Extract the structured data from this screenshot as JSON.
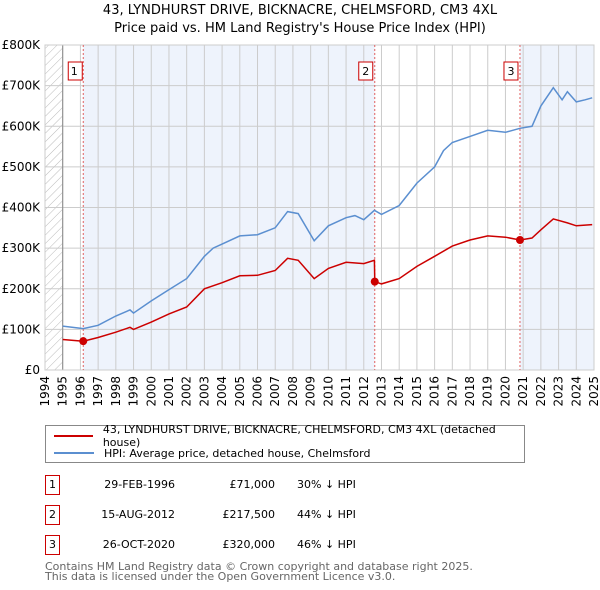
{
  "title_line1": "43, LYNDHURST DRIVE, BICKNACRE, CHELMSFORD, CM3 4XL",
  "title_line2": "Price paid vs. HM Land Registry's House Price Index (HPI)",
  "chart_data": {
    "type": "line",
    "title": "43, LYNDHURST DRIVE, BICKNACRE, CHELMSFORD, CM3 4XL — Price paid vs. HM Land Registry's House Price Index (HPI)",
    "xlim": [
      1994,
      2025
    ],
    "ylim": [
      0,
      800000
    ],
    "y_ticks": [
      0,
      100000,
      200000,
      300000,
      400000,
      500000,
      600000,
      700000,
      800000
    ],
    "y_tick_labels": [
      "£0",
      "£100K",
      "£200K",
      "£300K",
      "£400K",
      "£500K",
      "£600K",
      "£700K",
      "£800K"
    ],
    "x_ticks": [
      1994,
      1995,
      1996,
      1997,
      1998,
      1999,
      2000,
      2001,
      2002,
      2003,
      2004,
      2005,
      2006,
      2007,
      2008,
      2009,
      2010,
      2011,
      2012,
      2013,
      2014,
      2015,
      2016,
      2017,
      2018,
      2019,
      2020,
      2021,
      2022,
      2023,
      2024,
      2025
    ],
    "grid": true,
    "colors": {
      "property": "#cc0000",
      "hpi": "#5b8fd0",
      "shade": "#eef3fc",
      "marker_box": "#cc0000"
    },
    "series": [
      {
        "name": "43, LYNDHURST DRIVE, BICKNACRE, CHELMSFORD, CM3 4XL (detached house)",
        "color": "#cc0000",
        "x": [
          1995,
          1996.16,
          1997,
          1998,
          1998.8,
          1999,
          2000,
          2001,
          2002,
          2003,
          2004,
          2005,
          2006,
          2007,
          2007.7,
          2008.3,
          2009.2,
          2010,
          2011,
          2012,
          2012.6,
          2012.62,
          2013,
          2014,
          2015,
          2016,
          2017,
          2018,
          2019,
          2020,
          2020.82,
          2021.5,
          2022,
          2022.7,
          2023.5,
          2024,
          2024.9
        ],
        "y": [
          75000,
          71000,
          80000,
          93000,
          105000,
          100000,
          118000,
          138000,
          155000,
          200000,
          215000,
          232000,
          233000,
          245000,
          275000,
          270000,
          225000,
          250000,
          265000,
          262000,
          270000,
          217500,
          212000,
          225000,
          255000,
          280000,
          305000,
          320000,
          330000,
          327000,
          320000,
          325000,
          345000,
          372000,
          362000,
          355000,
          358000
        ]
      },
      {
        "name": "HPI: Average price, detached house, Chelmsford",
        "color": "#5b8fd0",
        "x": [
          1995,
          1996.16,
          1997,
          1998,
          1998.8,
          1999,
          2000,
          2001,
          2002,
          2003,
          2003.5,
          2004,
          2005,
          2006,
          2007,
          2007.7,
          2008.3,
          2009.2,
          2010,
          2011,
          2011.5,
          2012,
          2012.6,
          2013,
          2014,
          2015,
          2016,
          2016.5,
          2017,
          2018,
          2019,
          2020,
          2020.82,
          2021.5,
          2022,
          2022.7,
          2023.2,
          2023.5,
          2024,
          2024.5,
          2024.9
        ],
        "y": [
          108000,
          102000,
          110000,
          133000,
          148000,
          140000,
          170000,
          198000,
          225000,
          280000,
          300000,
          310000,
          330000,
          333000,
          350000,
          390000,
          385000,
          318000,
          355000,
          375000,
          380000,
          370000,
          393000,
          383000,
          405000,
          460000,
          500000,
          540000,
          560000,
          575000,
          590000,
          585000,
          595000,
          600000,
          650000,
          695000,
          665000,
          685000,
          660000,
          665000,
          670000
        ]
      }
    ],
    "sales": [
      {
        "label": "1",
        "x": 1996.16,
        "y": 71000
      },
      {
        "label": "2",
        "x": 2012.62,
        "y": 217500
      },
      {
        "label": "3",
        "x": 2020.82,
        "y": 320000
      }
    ]
  },
  "legend": [
    {
      "label": "43, LYNDHURST DRIVE, BICKNACRE, CHELMSFORD, CM3 4XL (detached house)",
      "color": "#cc0000"
    },
    {
      "label": "HPI: Average price, detached house, Chelmsford",
      "color": "#5b8fd0"
    }
  ],
  "transactions": [
    {
      "num": "1",
      "date": "29-FEB-1996",
      "price": "£71,000",
      "hpi": "30% ↓ HPI"
    },
    {
      "num": "2",
      "date": "15-AUG-2012",
      "price": "£217,500",
      "hpi": "44% ↓ HPI"
    },
    {
      "num": "3",
      "date": "26-OCT-2020",
      "price": "£320,000",
      "hpi": "46% ↓ HPI"
    }
  ],
  "footer_line1": "Contains HM Land Registry data © Crown copyright and database right 2025.",
  "footer_line2": "This data is licensed under the Open Government Licence v3.0."
}
